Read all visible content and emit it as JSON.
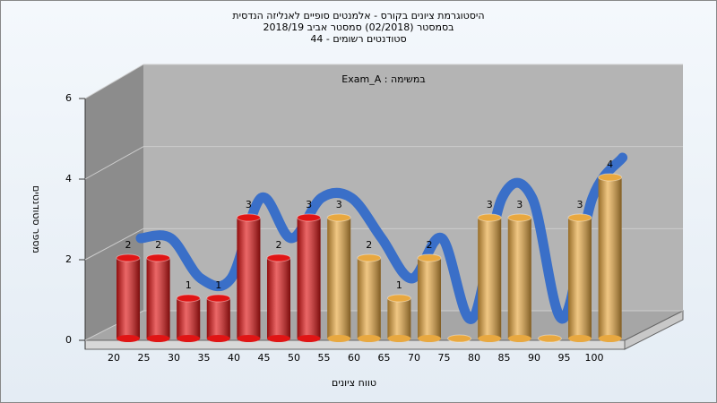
{
  "chart_data": {
    "type": "bar",
    "title": [
      "היסטוגרמת ציונים בקורס - אלמנטים סופיים לאנליזה הנדסית",
      "בסמסטר  (02/2018)  סמסטר אביב 2018/19",
      "סטודנטים רשומים - 44"
    ],
    "annotation": "Exam_A : במשימה",
    "x_label": "טווח ציונים",
    "y_label": "מספר סטודנטים",
    "categories": [
      20,
      25,
      30,
      35,
      40,
      45,
      50,
      55,
      60,
      65,
      70,
      75,
      80,
      85,
      90,
      95,
      100
    ],
    "values": [
      2,
      2,
      1,
      1,
      3,
      2,
      3,
      3,
      2,
      1,
      2,
      0,
      3,
      3,
      0,
      3,
      4
    ],
    "colors": [
      "#e01515",
      "#e01515",
      "#e01515",
      "#e01515",
      "#e01515",
      "#e01515",
      "#e01515",
      "#e8a840",
      "#e8a840",
      "#e8a840",
      "#e8a840",
      "#e8a840",
      "#e8a840",
      "#e8a840",
      "#e8a840",
      "#e8a840",
      "#e8a840"
    ],
    "trend_color": "#3a6fc8",
    "ylim": [
      0,
      6
    ],
    "yticks": [
      0,
      2,
      4,
      6
    ],
    "grid": true
  }
}
